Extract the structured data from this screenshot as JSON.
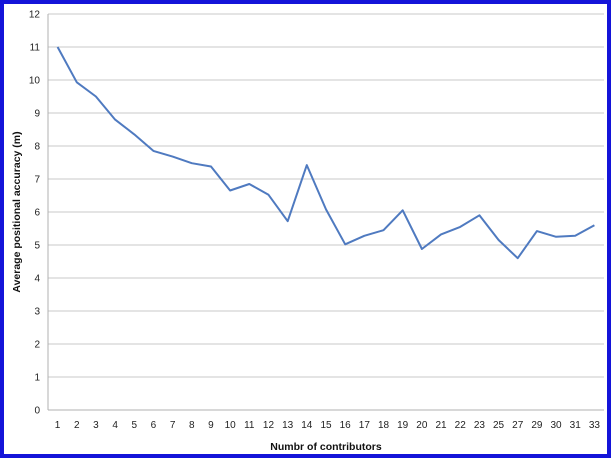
{
  "chart_data": {
    "type": "line",
    "title": "",
    "xlabel": "Numbr of contributors",
    "ylabel": "Average positional accuracy (m)",
    "categories": [
      "1",
      "2",
      "3",
      "4",
      "5",
      "6",
      "7",
      "8",
      "9",
      "10",
      "11",
      "12",
      "13",
      "14",
      "15",
      "16",
      "17",
      "18",
      "19",
      "20",
      "21",
      "22",
      "23",
      "25",
      "27",
      "29",
      "30",
      "31",
      "33"
    ],
    "series": [
      {
        "values": [
          11.0,
          9.93,
          9.5,
          8.8,
          8.35,
          7.85,
          7.68,
          7.48,
          7.38,
          6.65,
          6.85,
          6.52,
          5.72,
          7.42,
          6.08,
          5.02,
          5.28,
          5.45,
          6.05,
          4.88,
          5.32,
          5.55,
          5.9,
          5.15,
          4.6,
          5.42,
          5.25,
          5.28,
          5.6
        ],
        "color": "#4f7ac0"
      }
    ],
    "ylim": [
      0,
      12
    ],
    "yticks": [
      0,
      1,
      2,
      3,
      4,
      5,
      6,
      7,
      8,
      9,
      10,
      11,
      12
    ],
    "grid": true,
    "legend": "none",
    "colors": {
      "frame": "#1414d9",
      "line": "#4f7ac0",
      "grid": "#c8c8c8"
    }
  }
}
